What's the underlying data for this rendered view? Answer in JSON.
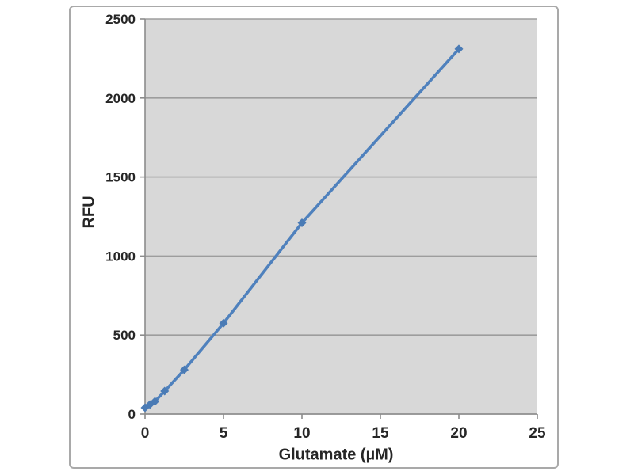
{
  "chart_data": {
    "type": "scatter",
    "subtype": "scatter-with-line-and-diamond-markers",
    "title": "",
    "xlabel": "Glutamate (µM)",
    "ylabel": "RFU",
    "x": [
      0,
      0.31,
      0.63,
      1.25,
      2.5,
      5,
      10,
      20
    ],
    "y": [
      40,
      60,
      80,
      145,
      280,
      575,
      1210,
      2310
    ],
    "xlim": [
      0,
      25
    ],
    "ylim": [
      0,
      2500
    ],
    "xticks": [
      0,
      5,
      10,
      15,
      20,
      25
    ],
    "yticks": [
      0,
      500,
      1000,
      1500,
      2000,
      2500
    ],
    "grid": "horizontal-major",
    "legend": "none",
    "colors": {
      "series_line": "#4f81bd",
      "marker_fill": "#4a7bb5",
      "plot_background": "#d8d8d8",
      "gridline": "#9d9d9d",
      "axis_line": "#8c8c8c",
      "tick_text": "#262626",
      "frame_border": "#a9a9a9",
      "page_background": "#ffffff"
    }
  }
}
